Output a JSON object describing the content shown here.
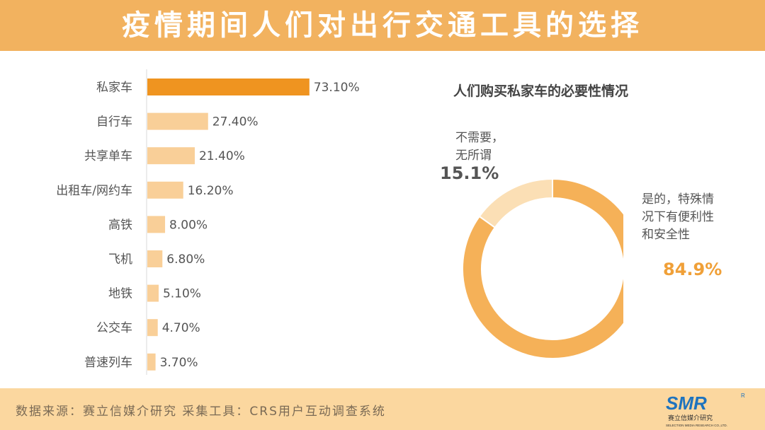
{
  "title": "疫情期间人们对出行交通工具的选择",
  "footer": {
    "source_text": "数据来源：赛立信媒介研究    采集工具：CRS用户互动调查系统"
  },
  "logo": {
    "mark": "SMR",
    "registered": "R",
    "name": "赛立信媒介研究",
    "subtext": "SELECTION MEDIA RESEARCH CO.,LTD."
  },
  "colors": {
    "header": "#f2b25f",
    "footer": "#fbd79f",
    "bar_highlight": "#ef9420",
    "bar_default": "#f9cf98",
    "donut_yes": "#f5b158",
    "donut_no": "#fbdfb5"
  },
  "chart_data": [
    {
      "type": "bar",
      "orientation": "horizontal",
      "categories": [
        "私家车",
        "自行车",
        "共享单车",
        "出租车/网约车",
        "高铁",
        "飞机",
        "地铁",
        "公交车",
        "普速列车"
      ],
      "values": [
        73.1,
        27.4,
        21.4,
        16.2,
        8.0,
        6.8,
        5.1,
        4.7,
        3.7
      ],
      "value_labels": [
        "73.10%",
        "27.40%",
        "21.40%",
        "16.20%",
        "8.00%",
        "6.80%",
        "5.10%",
        "4.70%",
        "3.70%"
      ],
      "highlight_index": 0,
      "unit": "%"
    },
    {
      "type": "pie",
      "style": "donut",
      "title": "人们购买私家车的必要性情况",
      "slices": [
        {
          "label": "是的，特殊情况下有便利性和安全性",
          "label_lines": [
            "是的，特殊情",
            "况下有便利性",
            "和安全性"
          ],
          "value": 84.9,
          "display": "84.9%"
        },
        {
          "label": "不需要，无所谓",
          "label_lines": [
            "不需要，",
            "无所谓"
          ],
          "value": 15.1,
          "display": "15.1%"
        }
      ]
    }
  ]
}
